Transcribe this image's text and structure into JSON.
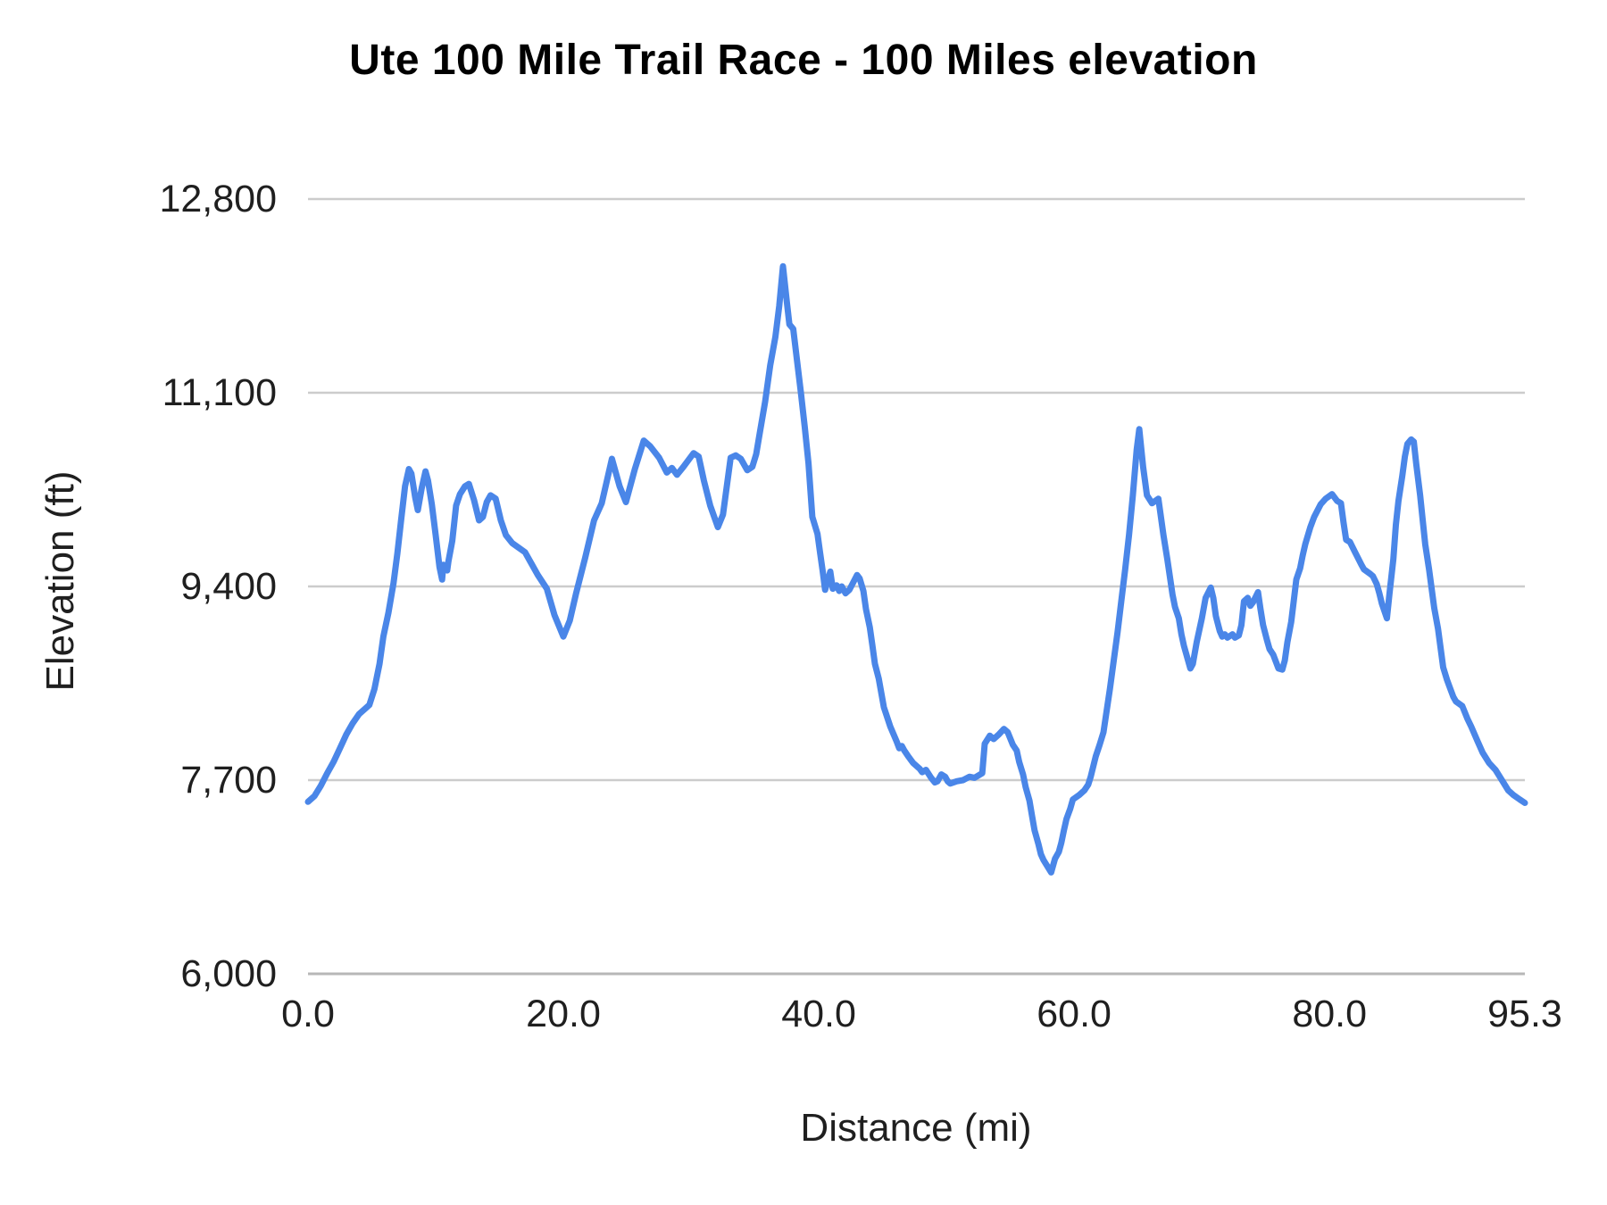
{
  "title": "Ute 100 Mile Trail Race - 100 Miles elevation",
  "colors": {
    "series_line": "#4a86e8",
    "gridline": "#cccccc",
    "baseline": "#b7b7b7",
    "tick_text": "#1f1f1f",
    "title_text": "#000000",
    "background": "#ffffff"
  },
  "chart_data": {
    "type": "line",
    "title": "Ute 100 Mile Trail Race - 100 Miles elevation",
    "xlabel": "Distance (mi)",
    "ylabel": "Elevation (ft)",
    "xlim": [
      0,
      95.3
    ],
    "ylim": [
      6000,
      12800
    ],
    "grid": true,
    "legend": "none",
    "x_ticks": [
      {
        "value": 0,
        "label": "0.0"
      },
      {
        "value": 20,
        "label": "20.0"
      },
      {
        "value": 40,
        "label": "40.0"
      },
      {
        "value": 60,
        "label": "60.0"
      },
      {
        "value": 80,
        "label": "80.0"
      },
      {
        "value": 95.3,
        "label": "95.3"
      }
    ],
    "y_ticks": [
      {
        "value": 6000,
        "label": "6,000"
      },
      {
        "value": 7700,
        "label": "7,700"
      },
      {
        "value": 9400,
        "label": "9,400"
      },
      {
        "value": 11100,
        "label": "11,100"
      },
      {
        "value": 12800,
        "label": "12,800"
      }
    ],
    "series": [
      {
        "name": "Elevation",
        "points": [
          [
            0,
            7510
          ],
          [
            0.5,
            7560
          ],
          [
            1,
            7650
          ],
          [
            1.5,
            7760
          ],
          [
            2,
            7860
          ],
          [
            2.5,
            7980
          ],
          [
            3,
            8100
          ],
          [
            3.5,
            8200
          ],
          [
            4,
            8280
          ],
          [
            4.5,
            8330
          ],
          [
            4.8,
            8360
          ],
          [
            5.2,
            8500
          ],
          [
            5.6,
            8720
          ],
          [
            5.9,
            8960
          ],
          [
            6.3,
            9170
          ],
          [
            6.7,
            9430
          ],
          [
            7,
            9690
          ],
          [
            7.3,
            9990
          ],
          [
            7.6,
            10280
          ],
          [
            7.9,
            10430
          ],
          [
            8.1,
            10390
          ],
          [
            8.4,
            10180
          ],
          [
            8.6,
            10070
          ],
          [
            8.9,
            10260
          ],
          [
            9.2,
            10410
          ],
          [
            9.4,
            10330
          ],
          [
            9.7,
            10120
          ],
          [
            10,
            9850
          ],
          [
            10.3,
            9570
          ],
          [
            10.5,
            9460
          ],
          [
            10.6,
            9590
          ],
          [
            10.7,
            9560
          ],
          [
            10.9,
            9540
          ],
          [
            11,
            9620
          ],
          [
            11.3,
            9800
          ],
          [
            11.6,
            10110
          ],
          [
            11.9,
            10210
          ],
          [
            12.3,
            10280
          ],
          [
            12.6,
            10300
          ],
          [
            13,
            10160
          ],
          [
            13.4,
            9980
          ],
          [
            13.7,
            10010
          ],
          [
            14,
            10140
          ],
          [
            14.3,
            10200
          ],
          [
            14.7,
            10170
          ],
          [
            15.1,
            9980
          ],
          [
            15.5,
            9850
          ],
          [
            16,
            9780
          ],
          [
            16.5,
            9740
          ],
          [
            17,
            9700
          ],
          [
            17.5,
            9600
          ],
          [
            18,
            9500
          ],
          [
            18.7,
            9380
          ],
          [
            19.3,
            9150
          ],
          [
            20,
            8960
          ],
          [
            20.5,
            9100
          ],
          [
            21,
            9340
          ],
          [
            21.7,
            9650
          ],
          [
            22.4,
            9980
          ],
          [
            23,
            10130
          ],
          [
            23.8,
            10520
          ],
          [
            24.4,
            10280
          ],
          [
            24.9,
            10140
          ],
          [
            25.6,
            10430
          ],
          [
            26.3,
            10680
          ],
          [
            26.8,
            10630
          ],
          [
            27.5,
            10530
          ],
          [
            28.1,
            10400
          ],
          [
            28.5,
            10440
          ],
          [
            28.9,
            10380
          ],
          [
            29.4,
            10450
          ],
          [
            30.2,
            10570
          ],
          [
            30.6,
            10540
          ],
          [
            31,
            10330
          ],
          [
            31.5,
            10110
          ],
          [
            32.1,
            9920
          ],
          [
            32.5,
            10030
          ],
          [
            33.1,
            10530
          ],
          [
            33.5,
            10550
          ],
          [
            33.9,
            10520
          ],
          [
            34.4,
            10420
          ],
          [
            34.8,
            10450
          ],
          [
            35.1,
            10560
          ],
          [
            35.4,
            10760
          ],
          [
            35.8,
            11020
          ],
          [
            36.2,
            11340
          ],
          [
            36.6,
            11590
          ],
          [
            36.9,
            11860
          ],
          [
            37.2,
            12210
          ],
          [
            37.5,
            11900
          ],
          [
            37.7,
            11700
          ],
          [
            38,
            11660
          ],
          [
            38.3,
            11380
          ],
          [
            38.6,
            11100
          ],
          [
            38.9,
            10800
          ],
          [
            39.2,
            10480
          ],
          [
            39.5,
            10010
          ],
          [
            39.9,
            9860
          ],
          [
            40.1,
            9700
          ],
          [
            40.3,
            9540
          ],
          [
            40.5,
            9370
          ],
          [
            40.9,
            9530
          ],
          [
            41.1,
            9380
          ],
          [
            41.4,
            9410
          ],
          [
            41.6,
            9360
          ],
          [
            41.8,
            9400
          ],
          [
            42.1,
            9340
          ],
          [
            42.4,
            9370
          ],
          [
            43,
            9500
          ],
          [
            43.2,
            9470
          ],
          [
            43.5,
            9360
          ],
          [
            43.7,
            9200
          ],
          [
            44,
            9040
          ],
          [
            44.2,
            8880
          ],
          [
            44.4,
            8720
          ],
          [
            44.7,
            8590
          ],
          [
            45.1,
            8340
          ],
          [
            45.6,
            8170
          ],
          [
            46.1,
            8040
          ],
          [
            46.3,
            7980
          ],
          [
            46.5,
            8000
          ],
          [
            46.7,
            7960
          ],
          [
            47,
            7910
          ],
          [
            47.4,
            7850
          ],
          [
            47.9,
            7800
          ],
          [
            48.1,
            7770
          ],
          [
            48.4,
            7790
          ],
          [
            48.8,
            7720
          ],
          [
            49.1,
            7680
          ],
          [
            49.3,
            7690
          ],
          [
            49.6,
            7750
          ],
          [
            49.9,
            7730
          ],
          [
            50.1,
            7690
          ],
          [
            50.3,
            7670
          ],
          [
            50.8,
            7690
          ],
          [
            51.3,
            7700
          ],
          [
            51.8,
            7730
          ],
          [
            52.2,
            7720
          ],
          [
            52.8,
            7760
          ],
          [
            53,
            8020
          ],
          [
            53.4,
            8090
          ],
          [
            53.7,
            8060
          ],
          [
            54.1,
            8100
          ],
          [
            54.5,
            8150
          ],
          [
            54.8,
            8120
          ],
          [
            55.2,
            8010
          ],
          [
            55.5,
            7960
          ],
          [
            55.7,
            7860
          ],
          [
            56,
            7750
          ],
          [
            56.2,
            7640
          ],
          [
            56.5,
            7520
          ],
          [
            56.7,
            7390
          ],
          [
            56.9,
            7260
          ],
          [
            57.2,
            7140
          ],
          [
            57.4,
            7050
          ],
          [
            57.6,
            7000
          ],
          [
            58.2,
            6890
          ],
          [
            58.5,
            7010
          ],
          [
            58.8,
            7070
          ],
          [
            59,
            7150
          ],
          [
            59.2,
            7260
          ],
          [
            59.4,
            7360
          ],
          [
            59.7,
            7450
          ],
          [
            59.9,
            7530
          ],
          [
            60.4,
            7570
          ],
          [
            60.8,
            7610
          ],
          [
            61.1,
            7660
          ],
          [
            61.3,
            7730
          ],
          [
            61.7,
            7910
          ],
          [
            62,
            8010
          ],
          [
            62.3,
            8120
          ],
          [
            62.8,
            8500
          ],
          [
            63.1,
            8750
          ],
          [
            63.4,
            9000
          ],
          [
            63.7,
            9280
          ],
          [
            64,
            9550
          ],
          [
            64.3,
            9850
          ],
          [
            64.6,
            10200
          ],
          [
            64.9,
            10600
          ],
          [
            65.1,
            10780
          ],
          [
            65.4,
            10450
          ],
          [
            65.7,
            10200
          ],
          [
            66.1,
            10130
          ],
          [
            66.6,
            10170
          ],
          [
            67,
            9850
          ],
          [
            67.3,
            9640
          ],
          [
            67.7,
            9330
          ],
          [
            67.9,
            9220
          ],
          [
            68.2,
            9120
          ],
          [
            68.4,
            8980
          ],
          [
            68.6,
            8880
          ],
          [
            69.1,
            8680
          ],
          [
            69.3,
            8720
          ],
          [
            69.6,
            8910
          ],
          [
            70,
            9120
          ],
          [
            70.3,
            9300
          ],
          [
            70.7,
            9390
          ],
          [
            70.9,
            9300
          ],
          [
            71.1,
            9140
          ],
          [
            71.4,
            9010
          ],
          [
            71.6,
            8960
          ],
          [
            71.8,
            8980
          ],
          [
            72,
            8950
          ],
          [
            72.4,
            8980
          ],
          [
            72.6,
            8950
          ],
          [
            72.9,
            8970
          ],
          [
            73.1,
            9060
          ],
          [
            73.3,
            9270
          ],
          [
            73.6,
            9300
          ],
          [
            73.8,
            9230
          ],
          [
            74,
            9260
          ],
          [
            74.4,
            9350
          ],
          [
            74.6,
            9200
          ],
          [
            74.8,
            9060
          ],
          [
            75.1,
            8930
          ],
          [
            75.3,
            8850
          ],
          [
            75.6,
            8800
          ],
          [
            76,
            8680
          ],
          [
            76.3,
            8670
          ],
          [
            76.5,
            8750
          ],
          [
            76.7,
            8910
          ],
          [
            77,
            9090
          ],
          [
            77.2,
            9270
          ],
          [
            77.4,
            9460
          ],
          [
            77.7,
            9560
          ],
          [
            77.9,
            9670
          ],
          [
            78.1,
            9770
          ],
          [
            78.5,
            9920
          ],
          [
            78.8,
            10010
          ],
          [
            79.3,
            10120
          ],
          [
            79.7,
            10170
          ],
          [
            80.2,
            10210
          ],
          [
            80.6,
            10150
          ],
          [
            80.9,
            10130
          ],
          [
            81.1,
            9960
          ],
          [
            81.3,
            9810
          ],
          [
            81.6,
            9790
          ],
          [
            82,
            9700
          ],
          [
            82.5,
            9590
          ],
          [
            82.7,
            9550
          ],
          [
            83.2,
            9510
          ],
          [
            83.4,
            9490
          ],
          [
            83.7,
            9420
          ],
          [
            83.9,
            9340
          ],
          [
            84.1,
            9250
          ],
          [
            84.5,
            9120
          ],
          [
            84.7,
            9340
          ],
          [
            85,
            9640
          ],
          [
            85.2,
            9940
          ],
          [
            85.4,
            10150
          ],
          [
            85.7,
            10370
          ],
          [
            85.9,
            10540
          ],
          [
            86.1,
            10650
          ],
          [
            86.4,
            10690
          ],
          [
            86.6,
            10670
          ],
          [
            86.8,
            10470
          ],
          [
            87.1,
            10200
          ],
          [
            87.3,
            9980
          ],
          [
            87.5,
            9770
          ],
          [
            87.8,
            9550
          ],
          [
            88,
            9380
          ],
          [
            88.2,
            9210
          ],
          [
            88.5,
            9030
          ],
          [
            88.7,
            8860
          ],
          [
            88.9,
            8690
          ],
          [
            89.2,
            8580
          ],
          [
            89.4,
            8520
          ],
          [
            89.7,
            8430
          ],
          [
            89.9,
            8390
          ],
          [
            90.4,
            8350
          ],
          [
            90.8,
            8240
          ],
          [
            91.1,
            8170
          ],
          [
            91.6,
            8040
          ],
          [
            92,
            7940
          ],
          [
            92.5,
            7850
          ],
          [
            93,
            7790
          ],
          [
            93.5,
            7700
          ],
          [
            94,
            7610
          ],
          [
            94.4,
            7570
          ],
          [
            94.9,
            7530
          ],
          [
            95.3,
            7500
          ]
        ]
      }
    ]
  }
}
